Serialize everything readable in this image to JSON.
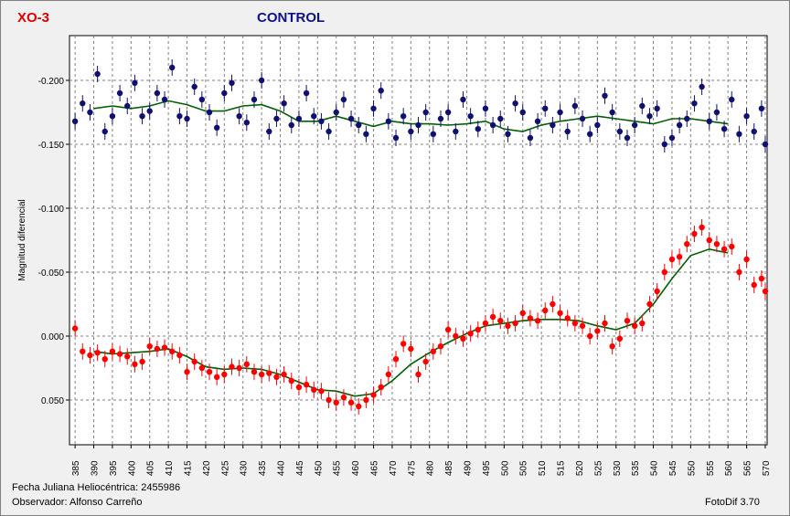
{
  "header": {
    "star_name": "XO-3",
    "control_label": "CONTROL"
  },
  "footer": {
    "hjd_text": "Fecha Juliana Heliocéntrica: 2455986",
    "observer_text": "Observador: Alfonso Carreño",
    "software_text": "FotoDif 3.70"
  },
  "chart_data": {
    "type": "scatter",
    "ylabel": "Magnitud diferencial",
    "xlabel": "",
    "xlim": [
      0.3835,
      0.5705
    ],
    "ylim": [
      -0.235,
      0.085
    ],
    "y_inverted": true,
    "grid": true,
    "x_ticks": [
      0.385,
      0.39,
      0.395,
      0.4,
      0.405,
      0.41,
      0.415,
      0.42,
      0.425,
      0.43,
      0.435,
      0.44,
      0.445,
      0.45,
      0.455,
      0.46,
      0.465,
      0.47,
      0.475,
      0.48,
      0.485,
      0.49,
      0.495,
      0.5,
      0.505,
      0.51,
      0.515,
      0.52,
      0.525,
      0.53,
      0.535,
      0.54,
      0.545,
      0.55,
      0.555,
      0.56,
      0.565,
      0.57
    ],
    "x_tick_labels": [
      "0.385",
      "0.390",
      "0.395",
      "0.400",
      "0.405",
      "0.410",
      "0.415",
      "0.420",
      "0.425",
      "0.430",
      "0.435",
      "0.440",
      "0.445",
      "0.450",
      "0.455",
      "0.460",
      "0.465",
      "0.470",
      "0.475",
      "0.480",
      "0.485",
      "0.490",
      "0.495",
      "0.500",
      "0.505",
      "0.510",
      "0.515",
      "0.520",
      "0.525",
      "0.530",
      "0.535",
      "0.540",
      "0.545",
      "0.550",
      "0.555",
      "0.560",
      "0.565",
      "0.570"
    ],
    "y_ticks": [
      -0.2,
      -0.15,
      -0.1,
      -0.05,
      0.0,
      0.05
    ],
    "y_tick_labels": [
      "-0.200",
      "-0.150",
      "-0.100",
      "-0.050",
      "0.000",
      "0.050"
    ],
    "colors": {
      "target": "#ff0000",
      "control": "#101070",
      "trend": "#006000",
      "grid": "#808080",
      "plot_bg": "#ffffff"
    },
    "series": [
      {
        "name": "XO-3",
        "role": "target",
        "x": [
          0.385,
          0.387,
          0.389,
          0.391,
          0.393,
          0.395,
          0.397,
          0.399,
          0.401,
          0.403,
          0.405,
          0.407,
          0.409,
          0.411,
          0.413,
          0.415,
          0.417,
          0.419,
          0.421,
          0.423,
          0.425,
          0.427,
          0.429,
          0.431,
          0.433,
          0.435,
          0.437,
          0.439,
          0.441,
          0.443,
          0.445,
          0.447,
          0.449,
          0.451,
          0.453,
          0.455,
          0.457,
          0.459,
          0.461,
          0.463,
          0.465,
          0.467,
          0.469,
          0.471,
          0.473,
          0.475,
          0.477,
          0.479,
          0.481,
          0.483,
          0.485,
          0.487,
          0.489,
          0.491,
          0.493,
          0.495,
          0.497,
          0.499,
          0.501,
          0.503,
          0.505,
          0.507,
          0.509,
          0.511,
          0.513,
          0.515,
          0.517,
          0.519,
          0.521,
          0.523,
          0.525,
          0.527,
          0.529,
          0.531,
          0.533,
          0.535,
          0.537,
          0.539,
          0.541,
          0.543,
          0.545,
          0.547,
          0.549,
          0.551,
          0.553,
          0.555,
          0.557,
          0.559,
          0.561,
          0.563,
          0.565,
          0.567,
          0.569,
          0.57
        ],
        "values": [
          -0.006,
          0.012,
          0.015,
          0.013,
          0.018,
          0.012,
          0.014,
          0.016,
          0.022,
          0.02,
          0.008,
          0.01,
          0.009,
          0.012,
          0.015,
          0.028,
          0.02,
          0.025,
          0.028,
          0.032,
          0.03,
          0.024,
          0.025,
          0.022,
          0.028,
          0.03,
          0.029,
          0.032,
          0.03,
          0.035,
          0.04,
          0.038,
          0.042,
          0.043,
          0.05,
          0.052,
          0.048,
          0.052,
          0.055,
          0.05,
          0.046,
          0.04,
          0.03,
          0.018,
          0.006,
          0.01,
          0.03,
          0.02,
          0.012,
          0.008,
          -0.005,
          0.0,
          0.002,
          -0.002,
          -0.005,
          -0.01,
          -0.015,
          -0.012,
          -0.008,
          -0.01,
          -0.018,
          -0.014,
          -0.012,
          -0.02,
          -0.025,
          -0.018,
          -0.014,
          -0.01,
          -0.008,
          0.0,
          -0.004,
          -0.01,
          0.008,
          0.002,
          -0.012,
          -0.008,
          -0.01,
          -0.025,
          -0.035,
          -0.05,
          -0.06,
          -0.062,
          -0.072,
          -0.08,
          -0.085,
          -0.075,
          -0.072,
          -0.068,
          -0.07,
          -0.05,
          -0.06,
          -0.04,
          -0.045,
          -0.035
        ]
      },
      {
        "name": "CONTROL",
        "role": "control",
        "x": [
          0.385,
          0.387,
          0.389,
          0.391,
          0.393,
          0.395,
          0.397,
          0.399,
          0.401,
          0.403,
          0.405,
          0.407,
          0.409,
          0.411,
          0.413,
          0.415,
          0.417,
          0.419,
          0.421,
          0.423,
          0.425,
          0.427,
          0.429,
          0.431,
          0.433,
          0.435,
          0.437,
          0.439,
          0.441,
          0.443,
          0.445,
          0.447,
          0.449,
          0.451,
          0.453,
          0.455,
          0.457,
          0.459,
          0.461,
          0.463,
          0.465,
          0.467,
          0.469,
          0.471,
          0.473,
          0.475,
          0.477,
          0.479,
          0.481,
          0.483,
          0.485,
          0.487,
          0.489,
          0.491,
          0.493,
          0.495,
          0.497,
          0.499,
          0.501,
          0.503,
          0.505,
          0.507,
          0.509,
          0.511,
          0.513,
          0.515,
          0.517,
          0.519,
          0.521,
          0.523,
          0.525,
          0.527,
          0.529,
          0.531,
          0.533,
          0.535,
          0.537,
          0.539,
          0.541,
          0.543,
          0.545,
          0.547,
          0.549,
          0.551,
          0.553,
          0.555,
          0.557,
          0.559,
          0.561,
          0.563,
          0.565,
          0.567,
          0.569,
          0.57
        ],
        "values": [
          -0.168,
          -0.182,
          -0.175,
          -0.205,
          -0.16,
          -0.172,
          -0.19,
          -0.18,
          -0.198,
          -0.172,
          -0.176,
          -0.19,
          -0.185,
          -0.21,
          -0.172,
          -0.17,
          -0.195,
          -0.185,
          -0.175,
          -0.163,
          -0.19,
          -0.198,
          -0.172,
          -0.167,
          -0.185,
          -0.2,
          -0.16,
          -0.17,
          -0.182,
          -0.165,
          -0.17,
          -0.19,
          -0.172,
          -0.168,
          -0.16,
          -0.175,
          -0.185,
          -0.17,
          -0.165,
          -0.158,
          -0.178,
          -0.192,
          -0.168,
          -0.155,
          -0.172,
          -0.16,
          -0.165,
          -0.175,
          -0.158,
          -0.17,
          -0.175,
          -0.16,
          -0.185,
          -0.172,
          -0.162,
          -0.178,
          -0.165,
          -0.17,
          -0.158,
          -0.182,
          -0.175,
          -0.155,
          -0.168,
          -0.178,
          -0.165,
          -0.175,
          -0.16,
          -0.18,
          -0.17,
          -0.158,
          -0.165,
          -0.188,
          -0.175,
          -0.16,
          -0.155,
          -0.165,
          -0.18,
          -0.172,
          -0.178,
          -0.15,
          -0.155,
          -0.165,
          -0.17,
          -0.182,
          -0.195,
          -0.168,
          -0.175,
          -0.162,
          -0.185,
          -0.158,
          -0.172,
          -0.16,
          -0.178,
          -0.15
        ]
      },
      {
        "name": "XO-3 trend",
        "role": "trend",
        "x": [
          0.39,
          0.395,
          0.4,
          0.405,
          0.41,
          0.415,
          0.42,
          0.425,
          0.43,
          0.435,
          0.44,
          0.445,
          0.45,
          0.455,
          0.46,
          0.465,
          0.47,
          0.475,
          0.48,
          0.485,
          0.49,
          0.495,
          0.5,
          0.505,
          0.51,
          0.515,
          0.52,
          0.525,
          0.53,
          0.535,
          0.54,
          0.545,
          0.55,
          0.555,
          0.56
        ],
        "values": [
          0.012,
          0.014,
          0.013,
          0.012,
          0.01,
          0.016,
          0.024,
          0.026,
          0.025,
          0.026,
          0.03,
          0.036,
          0.042,
          0.043,
          0.047,
          0.045,
          0.035,
          0.022,
          0.013,
          0.005,
          -0.002,
          -0.008,
          -0.01,
          -0.012,
          -0.013,
          -0.013,
          -0.012,
          -0.008,
          -0.005,
          -0.01,
          -0.025,
          -0.045,
          -0.063,
          -0.068,
          -0.065
        ]
      },
      {
        "name": "CONTROL trend",
        "role": "trend",
        "x": [
          0.39,
          0.395,
          0.4,
          0.405,
          0.41,
          0.415,
          0.42,
          0.425,
          0.43,
          0.435,
          0.44,
          0.445,
          0.45,
          0.455,
          0.46,
          0.465,
          0.47,
          0.475,
          0.48,
          0.485,
          0.49,
          0.495,
          0.5,
          0.505,
          0.51,
          0.515,
          0.52,
          0.525,
          0.53,
          0.535,
          0.54,
          0.545,
          0.55,
          0.555,
          0.56
        ],
        "values": [
          -0.178,
          -0.18,
          -0.178,
          -0.18,
          -0.184,
          -0.181,
          -0.176,
          -0.176,
          -0.18,
          -0.181,
          -0.176,
          -0.168,
          -0.168,
          -0.172,
          -0.168,
          -0.164,
          -0.168,
          -0.166,
          -0.166,
          -0.165,
          -0.166,
          -0.168,
          -0.162,
          -0.16,
          -0.165,
          -0.168,
          -0.17,
          -0.172,
          -0.17,
          -0.168,
          -0.166,
          -0.17,
          -0.17,
          -0.168,
          -0.166
        ]
      }
    ]
  }
}
